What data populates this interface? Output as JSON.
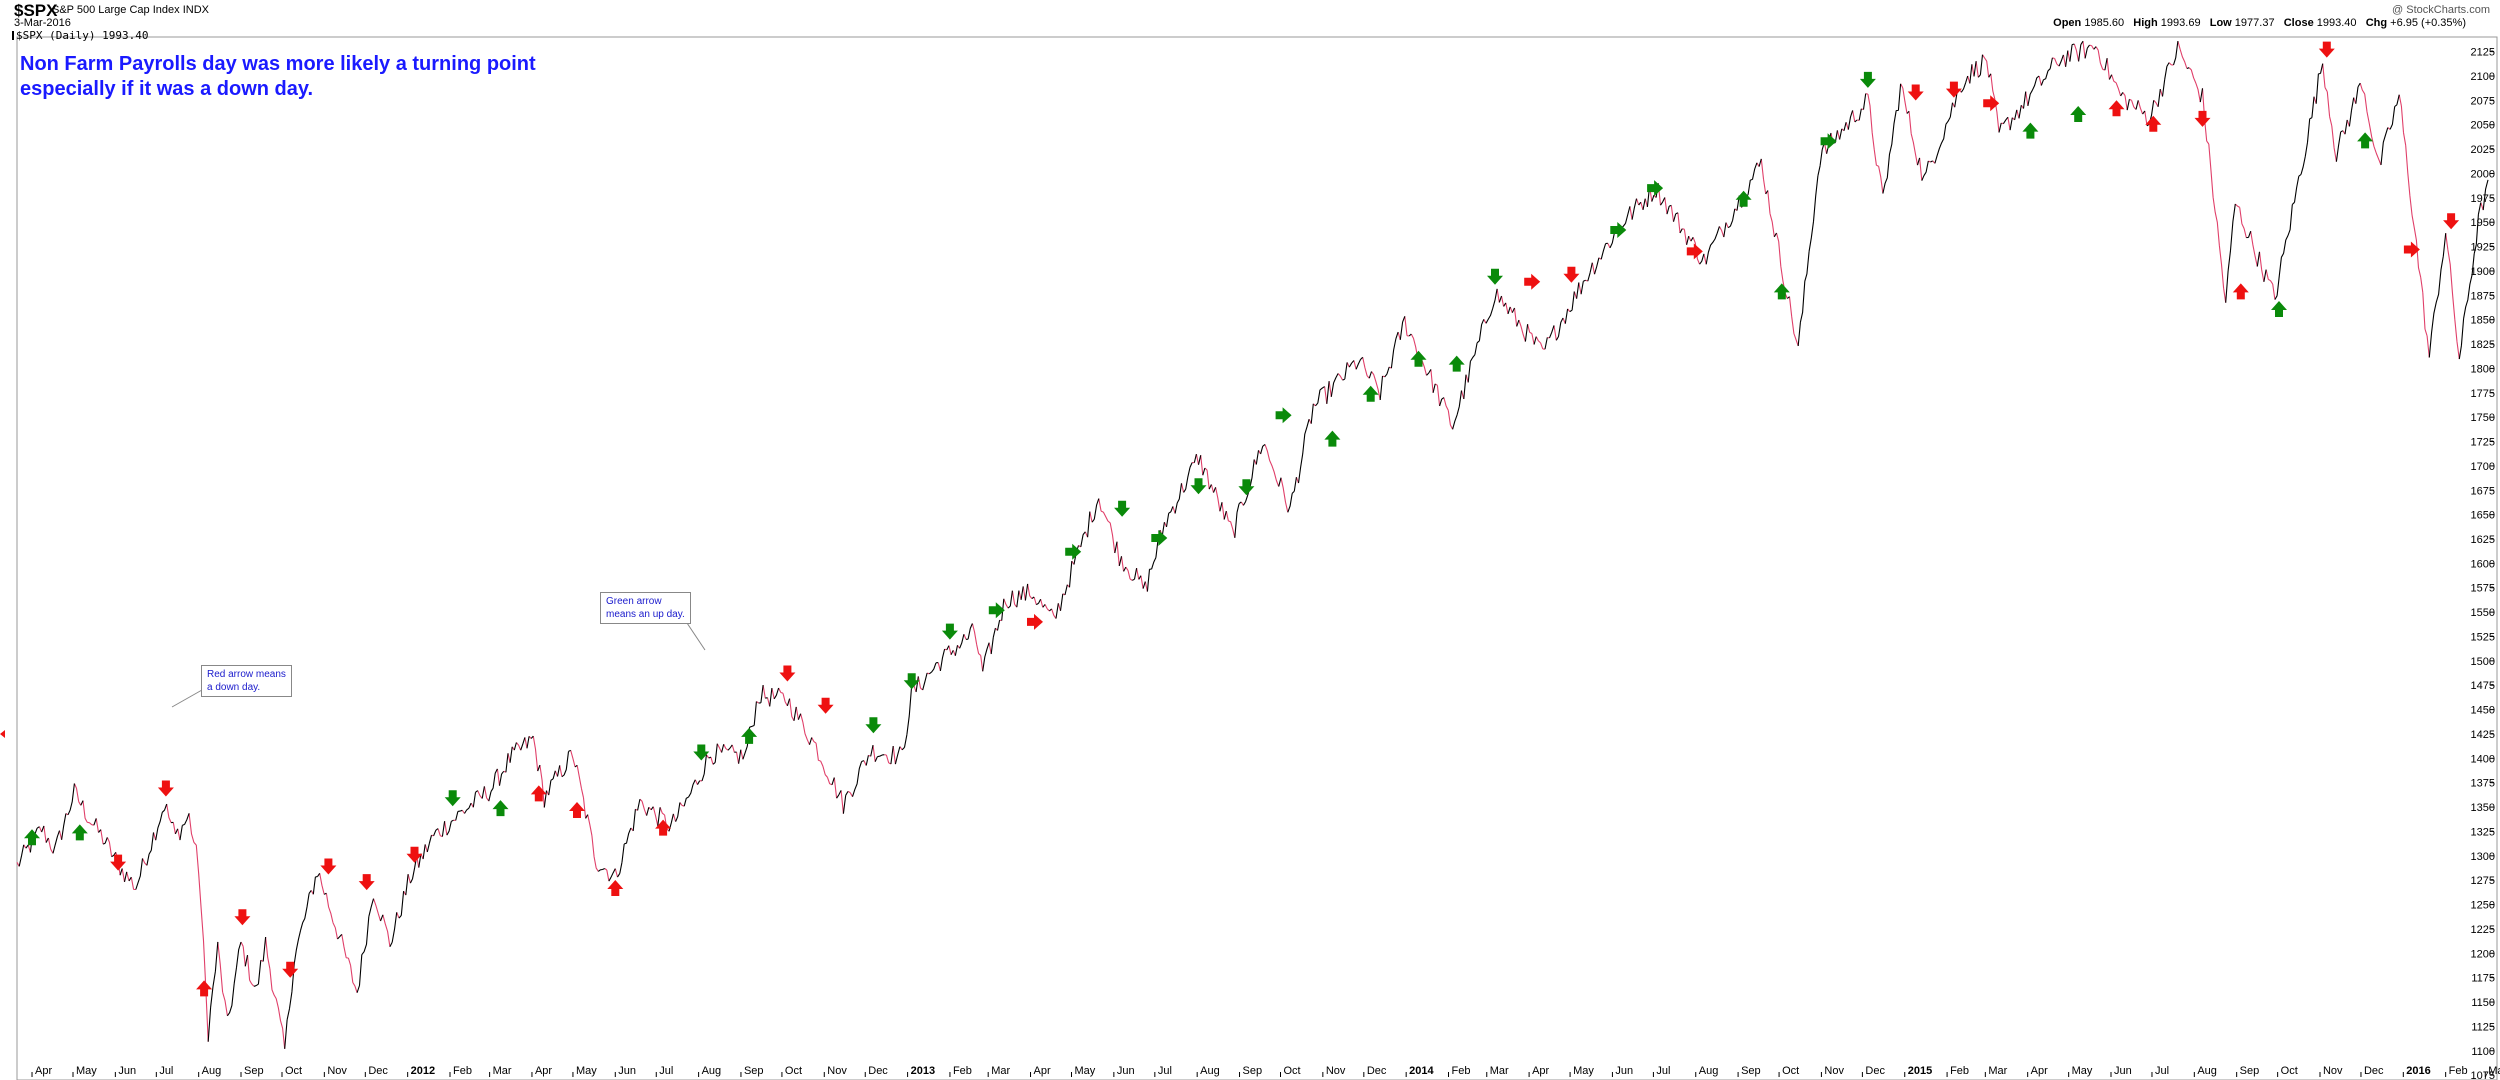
{
  "header": {
    "symbol": "$SPX",
    "name": "S&P 500 Large Cap Index",
    "exchange": "INDX",
    "date": "3-Mar-2016",
    "series_label": "$SPX (Daily) 1993.40",
    "copyright": "@ StockCharts.com",
    "ohlc": {
      "open_label": "Open",
      "open": "1985.60",
      "high_label": "High",
      "high": "1993.69",
      "low_label": "Low",
      "low": "1977.37",
      "close_label": "Close",
      "close": "1993.40",
      "chg_label": "Chg",
      "chg": "+6.95 (+0.35%)"
    }
  },
  "annotation": {
    "line1": "Non Farm Payrolls day was more likely a turning point",
    "line2": "especially if it was a down day."
  },
  "callouts": {
    "red": "Red arrow means\na down day.",
    "green": "Green arrow\nmeans an up day."
  },
  "colors": {
    "up_arrow": "#0a8a0a",
    "down_arrow": "#ee1111",
    "price_line": "#000000",
    "price_down": "#e0406a",
    "annotation_text": "#1a1aff"
  },
  "chart_data": {
    "type": "line",
    "title": "$SPX S&P 500 Large Cap Index",
    "x_axis": {
      "type": "date",
      "range": [
        "2011-03-21",
        "2016-03-03"
      ],
      "tick_labels": [
        {
          "label": "Apr",
          "date": "2011-04-01"
        },
        {
          "label": "May",
          "date": "2011-05-01"
        },
        {
          "label": "Jun",
          "date": "2011-06-01"
        },
        {
          "label": "Jul",
          "date": "2011-07-01"
        },
        {
          "label": "Aug",
          "date": "2011-08-01"
        },
        {
          "label": "Sep",
          "date": "2011-09-01"
        },
        {
          "label": "Oct",
          "date": "2011-10-01"
        },
        {
          "label": "Nov",
          "date": "2011-11-01"
        },
        {
          "label": "Dec",
          "date": "2011-12-01"
        },
        {
          "label": "2012",
          "date": "2012-01-01",
          "bold": true
        },
        {
          "label": "Feb",
          "date": "2012-02-01"
        },
        {
          "label": "Mar",
          "date": "2012-03-01"
        },
        {
          "label": "Apr",
          "date": "2012-04-01"
        },
        {
          "label": "May",
          "date": "2012-05-01"
        },
        {
          "label": "Jun",
          "date": "2012-06-01"
        },
        {
          "label": "Jul",
          "date": "2012-07-01"
        },
        {
          "label": "Aug",
          "date": "2012-08-01"
        },
        {
          "label": "Sep",
          "date": "2012-09-01"
        },
        {
          "label": "Oct",
          "date": "2012-10-01"
        },
        {
          "label": "Nov",
          "date": "2012-11-01"
        },
        {
          "label": "Dec",
          "date": "2012-12-01"
        },
        {
          "label": "2013",
          "date": "2013-01-01",
          "bold": true
        },
        {
          "label": "Feb",
          "date": "2013-02-01"
        },
        {
          "label": "Mar",
          "date": "2013-03-01"
        },
        {
          "label": "Apr",
          "date": "2013-04-01"
        },
        {
          "label": "May",
          "date": "2013-05-01"
        },
        {
          "label": "Jun",
          "date": "2013-06-01"
        },
        {
          "label": "Jul",
          "date": "2013-07-01"
        },
        {
          "label": "Aug",
          "date": "2013-08-01"
        },
        {
          "label": "Sep",
          "date": "2013-09-01"
        },
        {
          "label": "Oct",
          "date": "2013-10-01"
        },
        {
          "label": "Nov",
          "date": "2013-11-01"
        },
        {
          "label": "Dec",
          "date": "2013-12-01"
        },
        {
          "label": "2014",
          "date": "2014-01-01",
          "bold": true
        },
        {
          "label": "Feb",
          "date": "2014-02-01"
        },
        {
          "label": "Mar",
          "date": "2014-03-01"
        },
        {
          "label": "Apr",
          "date": "2014-04-01"
        },
        {
          "label": "May",
          "date": "2014-05-01"
        },
        {
          "label": "Jun",
          "date": "2014-06-01"
        },
        {
          "label": "Jul",
          "date": "2014-07-01"
        },
        {
          "label": "Aug",
          "date": "2014-08-01"
        },
        {
          "label": "Sep",
          "date": "2014-09-01"
        },
        {
          "label": "Oct",
          "date": "2014-10-01"
        },
        {
          "label": "Nov",
          "date": "2014-11-01"
        },
        {
          "label": "Dec",
          "date": "2014-12-01"
        },
        {
          "label": "2015",
          "date": "2015-01-01",
          "bold": true
        },
        {
          "label": "Feb",
          "date": "2015-02-01"
        },
        {
          "label": "Mar",
          "date": "2015-03-01"
        },
        {
          "label": "Apr",
          "date": "2015-04-01"
        },
        {
          "label": "May",
          "date": "2015-05-01"
        },
        {
          "label": "Jun",
          "date": "2015-06-01"
        },
        {
          "label": "Jul",
          "date": "2015-07-01"
        },
        {
          "label": "Aug",
          "date": "2015-08-01"
        },
        {
          "label": "Sep",
          "date": "2015-09-01"
        },
        {
          "label": "Oct",
          "date": "2015-10-01"
        },
        {
          "label": "Nov",
          "date": "2015-11-01"
        },
        {
          "label": "Dec",
          "date": "2015-12-01"
        },
        {
          "label": "2016",
          "date": "2016-01-01",
          "bold": true
        },
        {
          "label": "Feb",
          "date": "2016-02-01"
        },
        {
          "label": "Mar",
          "date": "2016-03-01"
        }
      ]
    },
    "y_axis": {
      "position": "right",
      "range": [
        1070,
        2140
      ],
      "ticks": [
        1075,
        1100,
        1125,
        1150,
        1175,
        1200,
        1225,
        1250,
        1275,
        1300,
        1325,
        1350,
        1375,
        1400,
        1425,
        1450,
        1475,
        1500,
        1525,
        1550,
        1575,
        1600,
        1625,
        1650,
        1675,
        1700,
        1725,
        1750,
        1775,
        1800,
        1825,
        1850,
        1875,
        1900,
        1925,
        1950,
        1975,
        2000,
        2025,
        2050,
        2075,
        2100,
        2125
      ]
    },
    "grid": false,
    "series": [
      {
        "name": "$SPX (Daily)",
        "points": [
          [
            "2011-03-21",
            1290
          ],
          [
            "2011-04-08",
            1328
          ],
          [
            "2011-04-18",
            1305
          ],
          [
            "2011-05-02",
            1365
          ],
          [
            "2011-05-13",
            1338
          ],
          [
            "2011-05-23",
            1318
          ],
          [
            "2011-06-06",
            1285
          ],
          [
            "2011-06-16",
            1268
          ],
          [
            "2011-07-07",
            1353
          ],
          [
            "2011-07-15",
            1320
          ],
          [
            "2011-07-25",
            1340
          ],
          [
            "2011-08-01",
            1288
          ],
          [
            "2011-08-08",
            1120
          ],
          [
            "2011-08-15",
            1205
          ],
          [
            "2011-08-22",
            1125
          ],
          [
            "2011-09-01",
            1210
          ],
          [
            "2011-09-12",
            1160
          ],
          [
            "2011-09-19",
            1210
          ],
          [
            "2011-10-03",
            1100
          ],
          [
            "2011-10-10",
            1195
          ],
          [
            "2011-10-27",
            1285
          ],
          [
            "2011-11-09",
            1230
          ],
          [
            "2011-11-25",
            1160
          ],
          [
            "2011-12-07",
            1265
          ],
          [
            "2011-12-19",
            1210
          ],
          [
            "2012-01-03",
            1278
          ],
          [
            "2012-01-20",
            1320
          ],
          [
            "2012-02-10",
            1345
          ],
          [
            "2012-03-02",
            1368
          ],
          [
            "2012-03-16",
            1400
          ],
          [
            "2012-04-02",
            1420
          ],
          [
            "2012-04-10",
            1360
          ],
          [
            "2012-05-01",
            1405
          ],
          [
            "2012-05-18",
            1295
          ],
          [
            "2012-06-01",
            1278
          ],
          [
            "2012-06-19",
            1355
          ],
          [
            "2012-07-12",
            1330
          ],
          [
            "2012-07-23",
            1355
          ],
          [
            "2012-08-10",
            1405
          ],
          [
            "2012-09-04",
            1402
          ],
          [
            "2012-09-14",
            1465
          ],
          [
            "2012-10-05",
            1460
          ],
          [
            "2012-10-26",
            1412
          ],
          [
            "2012-11-15",
            1353
          ],
          [
            "2012-12-05",
            1408
          ],
          [
            "2012-12-28",
            1402
          ],
          [
            "2013-01-04",
            1466
          ],
          [
            "2013-01-25",
            1500
          ],
          [
            "2013-02-19",
            1530
          ],
          [
            "2013-02-25",
            1488
          ],
          [
            "2013-03-14",
            1563
          ],
          [
            "2013-04-02",
            1570
          ],
          [
            "2013-04-18",
            1541
          ],
          [
            "2013-05-21",
            1669
          ],
          [
            "2013-06-05",
            1608
          ],
          [
            "2013-06-24",
            1573
          ],
          [
            "2013-07-08",
            1640
          ],
          [
            "2013-08-02",
            1709
          ],
          [
            "2013-08-27",
            1630
          ],
          [
            "2013-09-18",
            1725
          ],
          [
            "2013-10-08",
            1655
          ],
          [
            "2013-10-25",
            1760
          ],
          [
            "2013-11-27",
            1808
          ],
          [
            "2013-12-13",
            1775
          ],
          [
            "2013-12-31",
            1848
          ],
          [
            "2014-02-04",
            1741
          ],
          [
            "2014-03-07",
            1878
          ],
          [
            "2014-04-11",
            1815
          ],
          [
            "2014-05-14",
            1897
          ],
          [
            "2014-06-09",
            1951
          ],
          [
            "2014-07-03",
            1985
          ],
          [
            "2014-08-07",
            1910
          ],
          [
            "2014-09-18",
            2011
          ],
          [
            "2014-10-15",
            1820
          ],
          [
            "2014-10-31",
            2018
          ],
          [
            "2014-12-05",
            2075
          ],
          [
            "2014-12-16",
            1972
          ],
          [
            "2014-12-29",
            2090
          ],
          [
            "2015-01-15",
            1992
          ],
          [
            "2015-02-13",
            2096
          ],
          [
            "2015-03-02",
            2117
          ],
          [
            "2015-03-11",
            2040
          ],
          [
            "2015-04-24",
            2117
          ],
          [
            "2015-05-21",
            2131
          ],
          [
            "2015-06-08",
            2080
          ],
          [
            "2015-06-29",
            2057
          ],
          [
            "2015-07-20",
            2128
          ],
          [
            "2015-08-07",
            2078
          ],
          [
            "2015-08-24",
            1867
          ],
          [
            "2015-08-31",
            1970
          ],
          [
            "2015-09-29",
            1872
          ],
          [
            "2015-11-03",
            2115
          ],
          [
            "2015-11-13",
            2020
          ],
          [
            "2015-12-02",
            2095
          ],
          [
            "2015-12-14",
            2005
          ],
          [
            "2015-12-29",
            2080
          ],
          [
            "2016-01-20",
            1812
          ],
          [
            "2016-02-01",
            1940
          ],
          [
            "2016-02-11",
            1810
          ],
          [
            "2016-02-25",
            1950
          ],
          [
            "2016-03-03",
            1993.4
          ]
        ]
      }
    ],
    "nfp_arrows": [
      {
        "date": "2011-04-01",
        "value": 1320,
        "direction": "up"
      },
      {
        "date": "2011-05-06",
        "value": 1325,
        "direction": "up"
      },
      {
        "date": "2011-06-03",
        "value": 1292,
        "direction": "down"
      },
      {
        "date": "2011-07-08",
        "value": 1368,
        "direction": "down"
      },
      {
        "date": "2011-08-05",
        "value": 1165,
        "direction": "up_red"
      },
      {
        "date": "2011-09-02",
        "value": 1236,
        "direction": "down"
      },
      {
        "date": "2011-10-07",
        "value": 1182,
        "direction": "down"
      },
      {
        "date": "2011-11-04",
        "value": 1288,
        "direction": "down"
      },
      {
        "date": "2011-12-02",
        "value": 1272,
        "direction": "down"
      },
      {
        "date": "2012-01-06",
        "value": 1300,
        "direction": "down"
      },
      {
        "date": "2012-02-03",
        "value": 1358,
        "direction": "down_green"
      },
      {
        "date": "2012-03-09",
        "value": 1350,
        "direction": "up"
      },
      {
        "date": "2012-04-06",
        "value": 1365,
        "direction": "up_red"
      },
      {
        "date": "2012-05-04",
        "value": 1348,
        "direction": "up_red"
      },
      {
        "date": "2012-06-01",
        "value": 1268,
        "direction": "up_red"
      },
      {
        "date": "2012-07-06",
        "value": 1330,
        "direction": "up_red"
      },
      {
        "date": "2012-08-03",
        "value": 1405,
        "direction": "down_green"
      },
      {
        "date": "2012-09-07",
        "value": 1424,
        "direction": "up"
      },
      {
        "date": "2012-10-05",
        "value": 1486,
        "direction": "down"
      },
      {
        "date": "2012-11-02",
        "value": 1453,
        "direction": "down"
      },
      {
        "date": "2012-12-07",
        "value": 1433,
        "direction": "down_green"
      },
      {
        "date": "2013-01-04",
        "value": 1478,
        "direction": "down_green"
      },
      {
        "date": "2013-02-01",
        "value": 1529,
        "direction": "down_green"
      },
      {
        "date": "2013-03-08",
        "value": 1552,
        "direction": "right"
      },
      {
        "date": "2013-04-05",
        "value": 1540,
        "direction": "right_red"
      },
      {
        "date": "2013-05-03",
        "value": 1612,
        "direction": "right"
      },
      {
        "date": "2013-06-07",
        "value": 1655,
        "direction": "down_green"
      },
      {
        "date": "2013-07-05",
        "value": 1626,
        "direction": "right"
      },
      {
        "date": "2013-08-02",
        "value": 1678,
        "direction": "down_green"
      },
      {
        "date": "2013-09-06",
        "value": 1677,
        "direction": "down_green"
      },
      {
        "date": "2013-10-04",
        "value": 1752,
        "direction": "right"
      },
      {
        "date": "2013-11-08",
        "value": 1729,
        "direction": "up"
      },
      {
        "date": "2013-12-06",
        "value": 1775,
        "direction": "up"
      },
      {
        "date": "2014-01-10",
        "value": 1811,
        "direction": "up"
      },
      {
        "date": "2014-02-07",
        "value": 1806,
        "direction": "up"
      },
      {
        "date": "2014-03-07",
        "value": 1893,
        "direction": "down_green"
      },
      {
        "date": "2014-04-04",
        "value": 1889,
        "direction": "right_red"
      },
      {
        "date": "2014-05-02",
        "value": 1895,
        "direction": "down"
      },
      {
        "date": "2014-06-06",
        "value": 1942,
        "direction": "right"
      },
      {
        "date": "2014-07-03",
        "value": 1985,
        "direction": "right"
      },
      {
        "date": "2014-08-01",
        "value": 1920,
        "direction": "right_red"
      },
      {
        "date": "2014-09-05",
        "value": 1975,
        "direction": "up"
      },
      {
        "date": "2014-10-03",
        "value": 1880,
        "direction": "up"
      },
      {
        "date": "2014-11-07",
        "value": 2033,
        "direction": "right"
      },
      {
        "date": "2014-12-05",
        "value": 2095,
        "direction": "down_green"
      },
      {
        "date": "2015-01-09",
        "value": 2082,
        "direction": "down"
      },
      {
        "date": "2015-02-06",
        "value": 2085,
        "direction": "down"
      },
      {
        "date": "2015-03-06",
        "value": 2072,
        "direction": "right_red"
      },
      {
        "date": "2015-04-03",
        "value": 2045,
        "direction": "up"
      },
      {
        "date": "2015-05-08",
        "value": 2062,
        "direction": "up"
      },
      {
        "date": "2015-06-05",
        "value": 2068,
        "direction": "up_red"
      },
      {
        "date": "2015-07-02",
        "value": 2052,
        "direction": "up_red"
      },
      {
        "date": "2015-08-07",
        "value": 2055,
        "direction": "down"
      },
      {
        "date": "2015-09-04",
        "value": 1880,
        "direction": "up_red"
      },
      {
        "date": "2015-10-02",
        "value": 1862,
        "direction": "up"
      },
      {
        "date": "2015-11-06",
        "value": 2126,
        "direction": "down"
      },
      {
        "date": "2015-12-04",
        "value": 2035,
        "direction": "up"
      },
      {
        "date": "2016-01-08",
        "value": 1922,
        "direction": "right_red"
      },
      {
        "date": "2016-02-05",
        "value": 1950,
        "direction": "down"
      }
    ]
  }
}
